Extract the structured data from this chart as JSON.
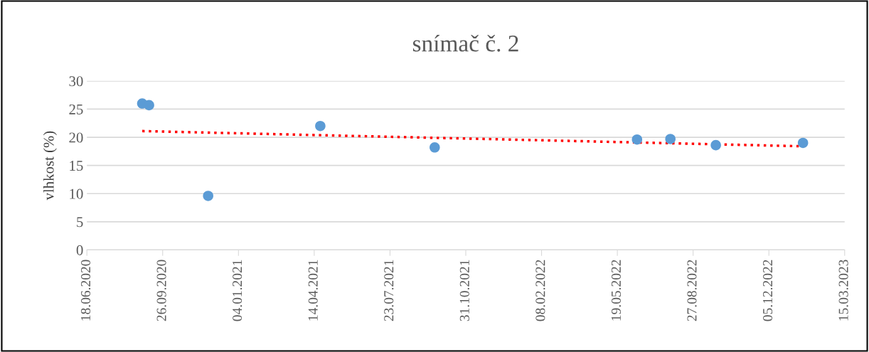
{
  "chart_data": {
    "type": "scatter",
    "title": "snímač č. 2",
    "ylabel": "vlhkost (%)",
    "series": [
      {
        "color": "#5b9bd5",
        "x": [
          "2020-08-30",
          "2020-09-08",
          "2020-11-25",
          "2021-04-22",
          "2021-09-20",
          "2022-06-14",
          "2022-07-28",
          "2022-09-26",
          "2023-01-19"
        ],
        "values": [
          26.0,
          25.7,
          9.6,
          22.0,
          18.2,
          19.6,
          19.7,
          18.6,
          19.0
        ]
      },
      {
        "type": "line",
        "color": "#ff0000",
        "line_style": "dotted",
        "marker": "none",
        "x": [
          "2020-08-30",
          "2023-01-19"
        ],
        "values": [
          21.1,
          18.4
        ]
      }
    ],
    "marker": "circle",
    "xlim": [
      "2020-06-18",
      "2023-03-15"
    ],
    "xticks": [
      {
        "value": "2020-06-18",
        "label": "18.06.2020"
      },
      {
        "value": "2020-09-26",
        "label": "26.09.2020"
      },
      {
        "value": "2021-01-04",
        "label": "04.01.2021"
      },
      {
        "value": "2021-04-14",
        "label": "14.04.2021"
      },
      {
        "value": "2021-07-23",
        "label": "23.07.2021"
      },
      {
        "value": "2021-10-31",
        "label": "31.10.2021"
      },
      {
        "value": "2022-02-08",
        "label": "08.02.2022"
      },
      {
        "value": "2022-05-19",
        "label": "19.05.2022"
      },
      {
        "value": "2022-08-27",
        "label": "27.08.2022"
      },
      {
        "value": "2022-12-05",
        "label": "05.12.2022"
      },
      {
        "value": "2023-03-15",
        "label": "15.03.2023"
      }
    ],
    "ylim": [
      0,
      30
    ],
    "yticks": [
      0,
      5,
      10,
      15,
      20,
      25,
      30
    ],
    "grid": "y"
  }
}
